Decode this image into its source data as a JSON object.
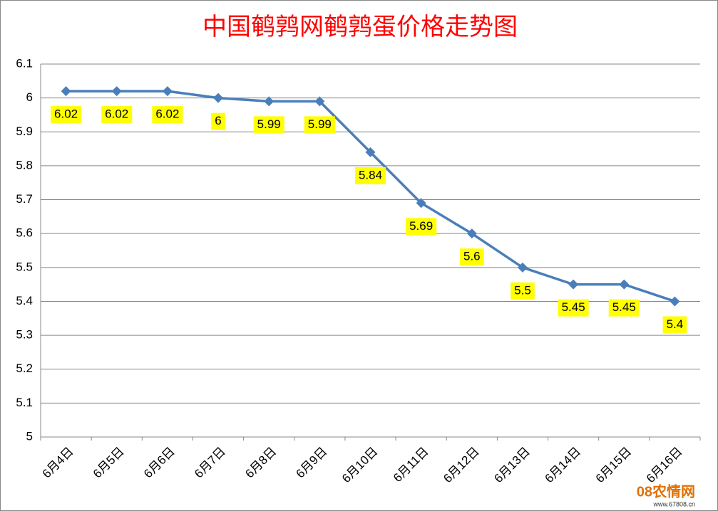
{
  "chart_data": {
    "type": "line",
    "title": "中国鹌鹑网鹌鹑蛋价格走势图",
    "categories": [
      "6月4日",
      "6月5日",
      "6月6日",
      "6月7日",
      "6月8日",
      "6月9日",
      "6月10日",
      "6月11日",
      "6月12日",
      "6月13日",
      "6月14日",
      "6月15日",
      "6月16日"
    ],
    "series": [
      {
        "name": "鹌鹑蛋价格",
        "color": "#4a7ebb",
        "values": [
          6.02,
          6.02,
          6.02,
          6,
          5.99,
          5.99,
          5.84,
          5.69,
          5.6,
          5.5,
          5.45,
          5.45,
          5.4
        ]
      }
    ],
    "ylim": [
      5,
      6.1
    ],
    "yticks": [
      5,
      5.1,
      5.2,
      5.3,
      5.4,
      5.5,
      5.6,
      5.7,
      5.8,
      5.9,
      6,
      6.1
    ],
    "grid": true,
    "data_label_color": "#ffff00"
  },
  "watermark": {
    "logo": "08农情网",
    "url": "www.67808.cn"
  }
}
